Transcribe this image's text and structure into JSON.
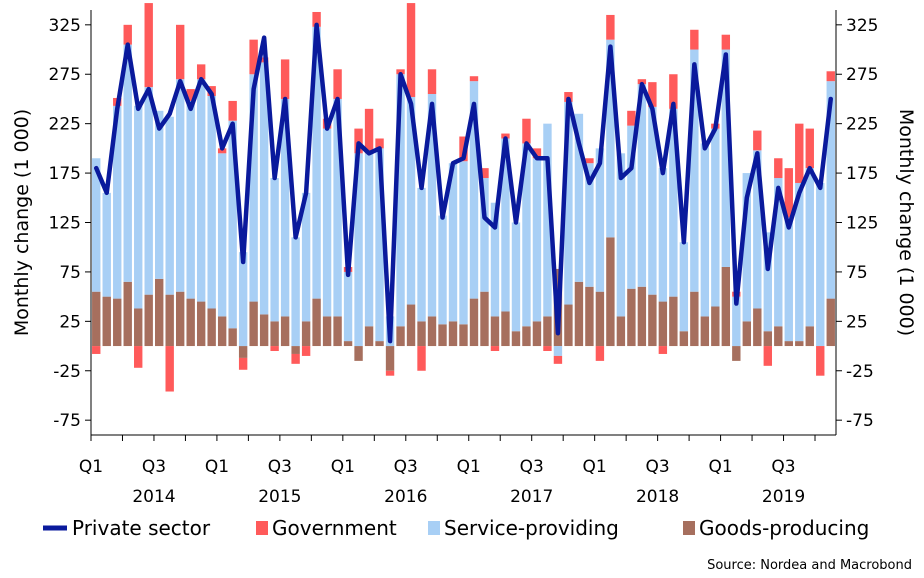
{
  "chart_data": {
    "type": "bar",
    "subtype": "stacked bar with line overlay",
    "ylabel_left": "Monthly change (1 000)",
    "ylabel_right": "Monthly change (1 000)",
    "ylim": [
      -90,
      340
    ],
    "yticks": [
      325,
      275,
      225,
      175,
      125,
      75,
      25,
      -25,
      -75
    ],
    "x_quarter_labels": [
      "Q1",
      "Q3",
      "Q1",
      "Q3",
      "Q1",
      "Q3",
      "Q1",
      "Q3",
      "Q1",
      "Q3",
      "Q1",
      "Q3"
    ],
    "x_year_labels": [
      "2014",
      "2015",
      "2016",
      "2017",
      "2018",
      "2019"
    ],
    "grid": false,
    "legend_position": "bottom",
    "source": "Source: Nordea and Macrobond",
    "colors": {
      "private": "#0a1a9c",
      "government": "#ff5a5a",
      "service": "#a8cff5",
      "goods": "#a66f5e"
    },
    "series": [
      {
        "name": "Private sector",
        "type": "line",
        "values": [
          180,
          155,
          240,
          305,
          240,
          260,
          220,
          235,
          268,
          240,
          270,
          255,
          200,
          225,
          85,
          260,
          312,
          170,
          250,
          110,
          155,
          325,
          220,
          250,
          72,
          205,
          195,
          200,
          5,
          275,
          245,
          160,
          245,
          130,
          185,
          190,
          245,
          130,
          120,
          210,
          125,
          205,
          190,
          190,
          13,
          250,
          205,
          165,
          185,
          303,
          170,
          180,
          265,
          240,
          175,
          245,
          105,
          285,
          200,
          220,
          295,
          43,
          150,
          195,
          78,
          160,
          120,
          155,
          180,
          160,
          250
        ]
      },
      {
        "name": "Government",
        "type": "bar",
        "values": [
          -8,
          0,
          8,
          20,
          -22,
          85,
          0,
          -46,
          55,
          12,
          15,
          10,
          5,
          20,
          -12,
          35,
          5,
          -5,
          40,
          -10,
          -10,
          15,
          10,
          30,
          5,
          25,
          45,
          10,
          -5,
          5,
          95,
          -25,
          25,
          0,
          0,
          25,
          5,
          10,
          -5,
          5,
          0,
          25,
          10,
          -5,
          -8,
          10,
          0,
          5,
          -15,
          25,
          0,
          15,
          5,
          25,
          -8,
          35,
          0,
          20,
          0,
          5,
          15,
          5,
          0,
          20,
          -20,
          20,
          50,
          60,
          40,
          -30,
          10
        ]
      },
      {
        "name": "Service-providing",
        "type": "bar",
        "values": [
          135,
          105,
          195,
          240,
          205,
          210,
          170,
          180,
          215,
          200,
          225,
          215,
          165,
          210,
          95,
          230,
          255,
          145,
          220,
          110,
          130,
          275,
          190,
          220,
          70,
          195,
          175,
          195,
          30,
          255,
          210,
          135,
          225,
          110,
          160,
          165,
          220,
          115,
          115,
          175,
          110,
          185,
          165,
          195,
          -10,
          205,
          170,
          125,
          145,
          200,
          165,
          165,
          205,
          190,
          135,
          190,
          90,
          245,
          175,
          180,
          220,
          50,
          150,
          160,
          100,
          150,
          125,
          160,
          160,
          165,
          220
        ]
      },
      {
        "name": "Goods-producing",
        "type": "bar",
        "values": [
          55,
          50,
          48,
          65,
          38,
          52,
          68,
          52,
          55,
          48,
          45,
          38,
          30,
          18,
          -12,
          45,
          32,
          25,
          30,
          -8,
          25,
          48,
          30,
          30,
          5,
          -15,
          20,
          5,
          -25,
          20,
          42,
          25,
          30,
          22,
          25,
          22,
          48,
          55,
          30,
          35,
          15,
          20,
          25,
          30,
          78,
          42,
          65,
          60,
          55,
          110,
          30,
          58,
          60,
          52,
          45,
          50,
          15,
          55,
          30,
          40,
          80,
          -15,
          25,
          38,
          15,
          20,
          5,
          5,
          20,
          0,
          48
        ]
      }
    ]
  }
}
